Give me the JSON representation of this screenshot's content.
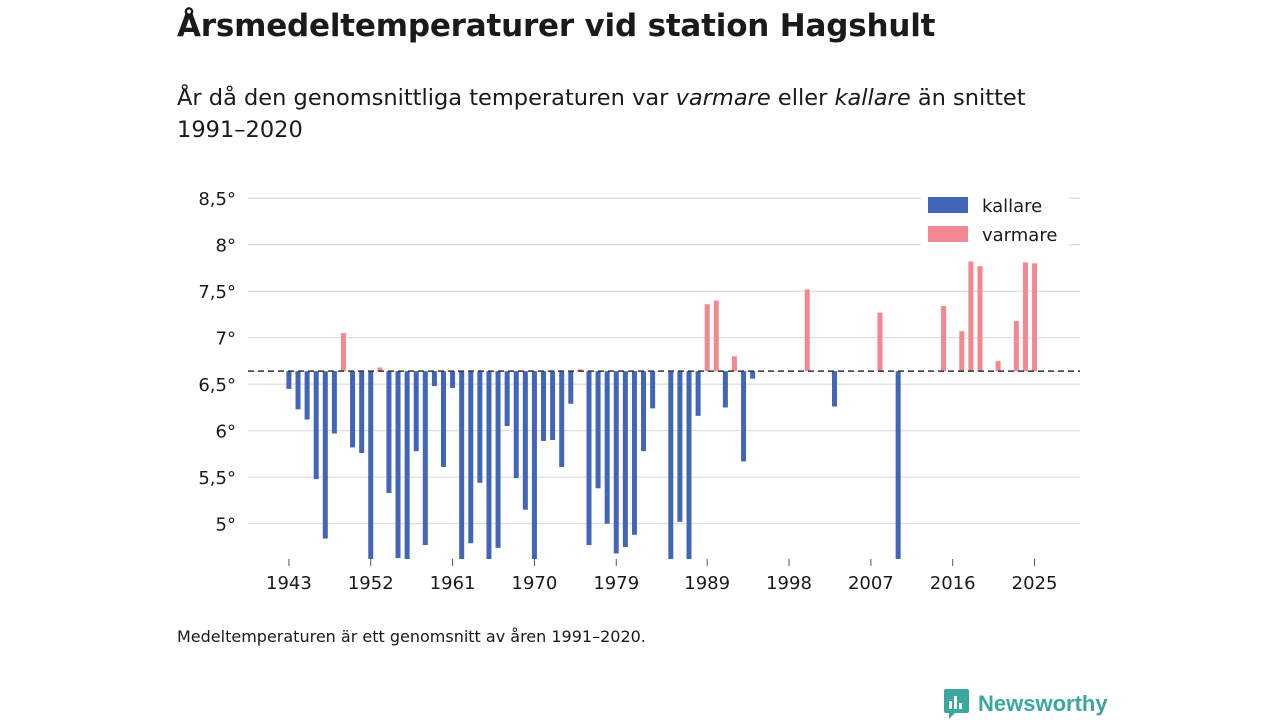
{
  "header": {
    "title": "Årsmedeltemperaturer vid station Hagshult",
    "subtitle_parts": [
      "År då den genomsnittliga temperaturen var ",
      "varmare",
      " eller ",
      "kallare",
      " än snittet 1991–2020"
    ]
  },
  "footnote": "Medeltemperaturen är ett genomsnitt av åren 1991–2020.",
  "brand": {
    "name": "Newsworthy",
    "icon": "newsworthy-logo-icon"
  },
  "colors": {
    "colder": "#4265b8",
    "warmer": "#f4878f",
    "grid": "#dcdcdc",
    "baseline": "#333333",
    "brand": "#3aa7a1"
  },
  "chart_data": {
    "type": "bar",
    "title": "Årsmedeltemperaturer vid station Hagshult",
    "baseline": 6.64,
    "ylim": [
      4.62,
      8.75
    ],
    "yticks": [
      5,
      5.5,
      6,
      6.5,
      7,
      7.5,
      8,
      8.5
    ],
    "ytick_labels": [
      "5°",
      "5,5°",
      "6°",
      "6,5°",
      "7°",
      "7,5°",
      "8°",
      "8,5°"
    ],
    "xlim": [
      1938.5,
      2030
    ],
    "xticks": [
      1943,
      1952,
      1961,
      1970,
      1979,
      1989,
      1998,
      2007,
      2016,
      2025
    ],
    "xtick_labels": [
      "1943",
      "1952",
      "1961",
      "1970",
      "1979",
      "1989",
      "1998",
      "2007",
      "2016",
      "2025"
    ],
    "legend": {
      "position": "top-right",
      "entries": [
        {
          "label": "kallare",
          "color": "#4265b8"
        },
        {
          "label": "varmare",
          "color": "#f4878f"
        }
      ]
    },
    "series": [
      {
        "year": 1943,
        "value": 6.45
      },
      {
        "year": 1944,
        "value": 6.23
      },
      {
        "year": 1945,
        "value": 6.12
      },
      {
        "year": 1946,
        "value": 5.48
      },
      {
        "year": 1947,
        "value": 4.84
      },
      {
        "year": 1948,
        "value": 5.97
      },
      {
        "year": 1949,
        "value": 7.05
      },
      {
        "year": 1950,
        "value": 5.82
      },
      {
        "year": 1951,
        "value": 5.76
      },
      {
        "year": 1952,
        "value": 4.62
      },
      {
        "year": 1953,
        "value": 6.68
      },
      {
        "year": 1954,
        "value": 5.33
      },
      {
        "year": 1955,
        "value": 4.63
      },
      {
        "year": 1956,
        "value": 4.62
      },
      {
        "year": 1957,
        "value": 5.78
      },
      {
        "year": 1958,
        "value": 4.77
      },
      {
        "year": 1959,
        "value": 6.48
      },
      {
        "year": 1960,
        "value": 5.61
      },
      {
        "year": 1961,
        "value": 6.46
      },
      {
        "year": 1962,
        "value": 4.62
      },
      {
        "year": 1963,
        "value": 4.79
      },
      {
        "year": 1964,
        "value": 5.44
      },
      {
        "year": 1965,
        "value": 4.62
      },
      {
        "year": 1966,
        "value": 4.74
      },
      {
        "year": 1967,
        "value": 6.05
      },
      {
        "year": 1968,
        "value": 5.49
      },
      {
        "year": 1969,
        "value": 5.15
      },
      {
        "year": 1970,
        "value": 4.62
      },
      {
        "year": 1971,
        "value": 5.89
      },
      {
        "year": 1972,
        "value": 5.9
      },
      {
        "year": 1973,
        "value": 5.61
      },
      {
        "year": 1974,
        "value": 6.29
      },
      {
        "year": 1975,
        "value": 6.66
      },
      {
        "year": 1976,
        "value": 4.77
      },
      {
        "year": 1977,
        "value": 5.38
      },
      {
        "year": 1978,
        "value": 5.0
      },
      {
        "year": 1979,
        "value": 4.68
      },
      {
        "year": 1980,
        "value": 4.75
      },
      {
        "year": 1981,
        "value": 4.88
      },
      {
        "year": 1982,
        "value": 5.78
      },
      {
        "year": 1983,
        "value": 6.24
      },
      {
        "year": 1985,
        "value": 4.62
      },
      {
        "year": 1986,
        "value": 5.02
      },
      {
        "year": 1987,
        "value": 4.62
      },
      {
        "year": 1988,
        "value": 6.16
      },
      {
        "year": 1989,
        "value": 7.36
      },
      {
        "year": 1990,
        "value": 7.4
      },
      {
        "year": 1991,
        "value": 6.25
      },
      {
        "year": 1992,
        "value": 6.8
      },
      {
        "year": 1993,
        "value": 5.67
      },
      {
        "year": 1994,
        "value": 6.56
      },
      {
        "year": 2000,
        "value": 7.52
      },
      {
        "year": 2003,
        "value": 6.26
      },
      {
        "year": 2008,
        "value": 7.27
      },
      {
        "year": 2010,
        "value": 4.62
      },
      {
        "year": 2015,
        "value": 7.34
      },
      {
        "year": 2017,
        "value": 7.07
      },
      {
        "year": 2018,
        "value": 7.82
      },
      {
        "year": 2019,
        "value": 7.77
      },
      {
        "year": 2021,
        "value": 6.75
      },
      {
        "year": 2023,
        "value": 7.18
      },
      {
        "year": 2024,
        "value": 7.81
      },
      {
        "year": 2025,
        "value": 7.8
      }
    ]
  }
}
